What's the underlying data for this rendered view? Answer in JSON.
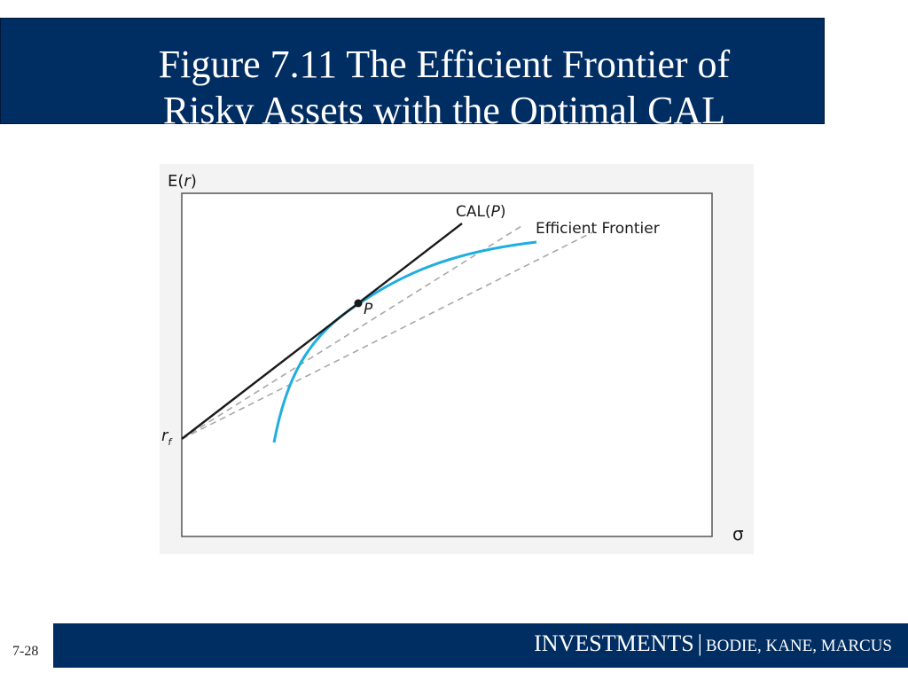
{
  "slide": {
    "title_line1": "Figure 7.11 The Efficient Frontier of",
    "title_line2": "Risky Assets with the Optimal CAL",
    "number": "7-28"
  },
  "footer": {
    "main": "INVESTMENTS",
    "separator": "|",
    "authors": "BODIE, KANE, MARCUS"
  },
  "diagram": {
    "y_axis_label": {
      "prefix": "E(",
      "var": "r",
      "suffix": ")"
    },
    "x_axis_label": "σ",
    "rf_label": {
      "base": "r",
      "sub": "f"
    },
    "cal_label": {
      "prefix": "CAL(",
      "var": "P",
      "suffix": ")"
    },
    "frontier_label": "Efficient Frontier",
    "point_label": "P",
    "colors": {
      "frontier": "#1eaee0",
      "cal": "#1a1a1a",
      "dashed": "#a8a8a8",
      "banner": "#002d62"
    }
  }
}
